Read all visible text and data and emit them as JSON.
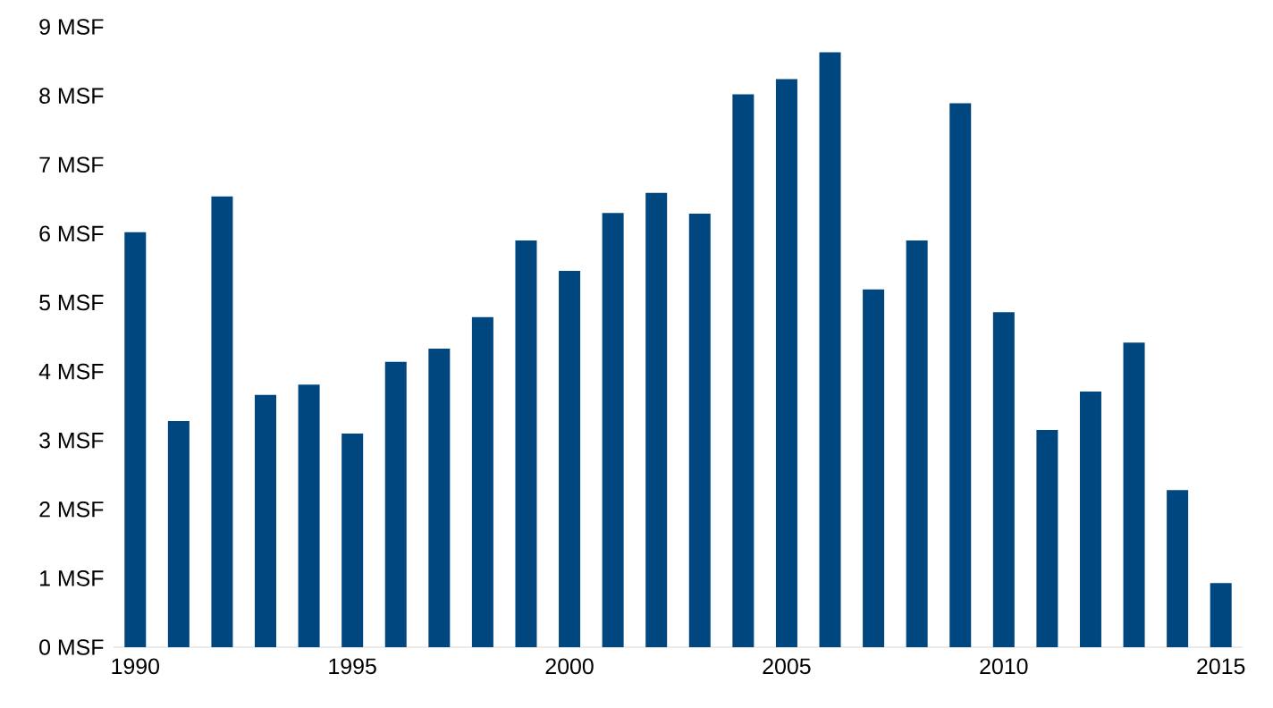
{
  "chart_data": {
    "type": "bar",
    "categories": [
      "1990",
      null,
      null,
      null,
      null,
      "1995",
      null,
      null,
      null,
      null,
      "2000",
      null,
      null,
      null,
      null,
      "2005",
      null,
      null,
      null,
      null,
      "2010",
      null,
      null,
      null,
      null,
      "2015"
    ],
    "values": [
      6.02,
      3.28,
      6.54,
      3.66,
      3.81,
      3.1,
      4.14,
      4.33,
      4.79,
      5.9,
      5.46,
      6.3,
      6.59,
      6.29,
      8.02,
      8.24,
      8.63,
      5.19,
      5.9,
      7.89,
      4.86,
      3.15,
      3.71,
      4.42,
      2.28,
      0.93
    ],
    "color": "#00477f",
    "ylim": [
      0,
      9
    ],
    "yticks": [
      {
        "value": 0,
        "label": "0 MSF"
      },
      {
        "value": 1,
        "label": "1 MSF"
      },
      {
        "value": 2,
        "label": "2 MSF"
      },
      {
        "value": 3,
        "label": "3 MSF"
      },
      {
        "value": 4,
        "label": "4 MSF"
      },
      {
        "value": 5,
        "label": "5 MSF"
      },
      {
        "value": 6,
        "label": "6 MSF"
      },
      {
        "value": 7,
        "label": "7 MSF"
      },
      {
        "value": 8,
        "label": "8 MSF"
      },
      {
        "value": 9,
        "label": "9 MSF"
      }
    ]
  }
}
